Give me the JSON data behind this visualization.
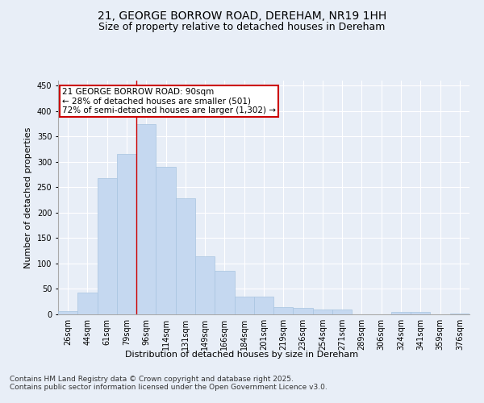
{
  "title_line1": "21, GEORGE BORROW ROAD, DEREHAM, NR19 1HH",
  "title_line2": "Size of property relative to detached houses in Dereham",
  "xlabel": "Distribution of detached houses by size in Dereham",
  "ylabel": "Number of detached properties",
  "categories": [
    "26sqm",
    "44sqm",
    "61sqm",
    "79sqm",
    "96sqm",
    "114sqm",
    "131sqm",
    "149sqm",
    "166sqm",
    "184sqm",
    "201sqm",
    "219sqm",
    "236sqm",
    "254sqm",
    "271sqm",
    "289sqm",
    "306sqm",
    "324sqm",
    "341sqm",
    "359sqm",
    "376sqm"
  ],
  "values": [
    7,
    43,
    268,
    315,
    375,
    290,
    228,
    115,
    85,
    35,
    35,
    15,
    12,
    10,
    10,
    0,
    0,
    5,
    5,
    0,
    2
  ],
  "bar_color": "#c5d8f0",
  "bar_edge_color": "#a8c4e0",
  "vline_color": "#cc0000",
  "annotation_text": "21 GEORGE BORROW ROAD: 90sqm\n← 28% of detached houses are smaller (501)\n72% of semi-detached houses are larger (1,302) →",
  "annotation_box_color": "#ffffff",
  "annotation_box_edge": "#cc0000",
  "ylim": [
    0,
    460
  ],
  "yticks": [
    0,
    50,
    100,
    150,
    200,
    250,
    300,
    350,
    400,
    450
  ],
  "background_color": "#e8eef7",
  "plot_bg_color": "#e8eef7",
  "footer_line1": "Contains HM Land Registry data © Crown copyright and database right 2025.",
  "footer_line2": "Contains public sector information licensed under the Open Government Licence v3.0.",
  "grid_color": "#ffffff",
  "title_fontsize": 10,
  "subtitle_fontsize": 9,
  "axis_label_fontsize": 8,
  "tick_fontsize": 7,
  "annotation_fontsize": 7.5,
  "footer_fontsize": 6.5
}
